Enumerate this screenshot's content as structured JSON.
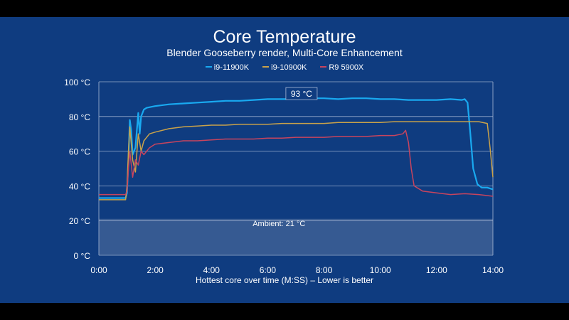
{
  "chart_data": {
    "type": "line",
    "title": "Core Temperature",
    "subtitle": "Blender Gooseberry render, Multi-Core Enhancement",
    "xlabel": "Hottest core over time (M:SS) – Lower is better",
    "ylabel": "",
    "xlim": [
      0,
      14
    ],
    "ylim": [
      0,
      100
    ],
    "x_ticks": [
      0,
      2,
      4,
      6,
      8,
      10,
      12,
      14
    ],
    "x_tick_labels": [
      "0:00",
      "2:00",
      "4:00",
      "6:00",
      "8:00",
      "10:00",
      "12:00",
      "14:00"
    ],
    "y_ticks": [
      0,
      20,
      40,
      60,
      80,
      100
    ],
    "y_tick_labels": [
      "0 °C",
      "20 °C",
      "40 °C",
      "60 °C",
      "80 °C",
      "100 °C"
    ],
    "grid": true,
    "legend_position": "top-center",
    "series": [
      {
        "name": "i9-11900K",
        "color": "#19a9f0",
        "x": [
          0,
          0.4,
          0.8,
          0.95,
          1.0,
          1.05,
          1.1,
          1.15,
          1.2,
          1.3,
          1.4,
          1.45,
          1.5,
          1.6,
          1.7,
          2.0,
          2.5,
          3.0,
          3.5,
          4.0,
          4.5,
          5.0,
          5.5,
          6.0,
          6.5,
          7.0,
          7.5,
          8.0,
          8.5,
          9.0,
          9.5,
          10.0,
          10.5,
          11.0,
          11.5,
          12.0,
          12.5,
          12.9,
          13.0,
          13.1,
          13.2,
          13.3,
          13.45,
          13.6,
          13.8,
          14.0
        ],
        "values": [
          33,
          33,
          33,
          33,
          36,
          55,
          78,
          72,
          58,
          62,
          82,
          70,
          80,
          84,
          85,
          86,
          87,
          87.5,
          88,
          88.5,
          89,
          89,
          89.5,
          90,
          90,
          90,
          90.5,
          90.5,
          90,
          90.5,
          90.5,
          90,
          90,
          89.5,
          89.5,
          89.5,
          90,
          89.5,
          90,
          88,
          70,
          50,
          41,
          39,
          39,
          38
        ]
      },
      {
        "name": "i9-10900K",
        "color": "#c9a24a",
        "x": [
          0,
          0.4,
          0.8,
          0.95,
          1.0,
          1.05,
          1.1,
          1.2,
          1.3,
          1.4,
          1.5,
          1.6,
          1.8,
          2.0,
          2.5,
          3.0,
          3.5,
          4.0,
          4.5,
          5.0,
          5.5,
          6.0,
          6.5,
          7.0,
          7.5,
          8.0,
          8.5,
          9.0,
          9.5,
          10.0,
          10.5,
          11.0,
          11.5,
          12.0,
          12.5,
          13.0,
          13.5,
          13.8,
          13.9,
          14.0
        ],
        "values": [
          32,
          32,
          32,
          32,
          40,
          60,
          74,
          55,
          48,
          70,
          60,
          66,
          70,
          71,
          73,
          74,
          74.5,
          75,
          75,
          75.5,
          75.5,
          75.5,
          76,
          76,
          76,
          76,
          76.5,
          76.5,
          76.5,
          76.5,
          77,
          77,
          77,
          77,
          77,
          77,
          77,
          76,
          62,
          45
        ]
      },
      {
        "name": "R9 5900X",
        "color": "#c8445e",
        "x": [
          0,
          0.4,
          0.8,
          0.95,
          1.0,
          1.05,
          1.1,
          1.2,
          1.3,
          1.4,
          1.5,
          1.6,
          1.8,
          2.0,
          2.5,
          3.0,
          3.5,
          4.0,
          4.5,
          5.0,
          5.5,
          6.0,
          6.5,
          7.0,
          7.5,
          8.0,
          8.5,
          9.0,
          9.5,
          10.0,
          10.5,
          10.8,
          10.9,
          11.0,
          11.1,
          11.2,
          11.5,
          12.0,
          12.5,
          13.0,
          13.5,
          14.0
        ],
        "values": [
          35,
          35,
          35,
          35,
          37,
          50,
          60,
          45,
          55,
          52,
          60,
          58,
          62,
          64,
          65,
          66,
          66,
          66.5,
          67,
          67,
          67,
          67.5,
          67.5,
          68,
          68,
          68,
          68.5,
          68.5,
          68.5,
          69,
          69,
          70,
          72,
          65,
          50,
          40,
          37,
          36,
          35,
          35.5,
          35,
          34
        ]
      }
    ],
    "annotations": [
      {
        "text": "93 °C",
        "x": 7.2,
        "y": 93
      },
      {
        "text": "Ambient: 21 °C",
        "x": 6.4,
        "y": 21
      }
    ],
    "ambient_value": 21
  },
  "colors": {
    "background": "#0f3c80",
    "frame": "#000000",
    "grid": "#a9b9d6",
    "ambient_fill": "#3d5f95",
    "text": "#ffffff"
  }
}
